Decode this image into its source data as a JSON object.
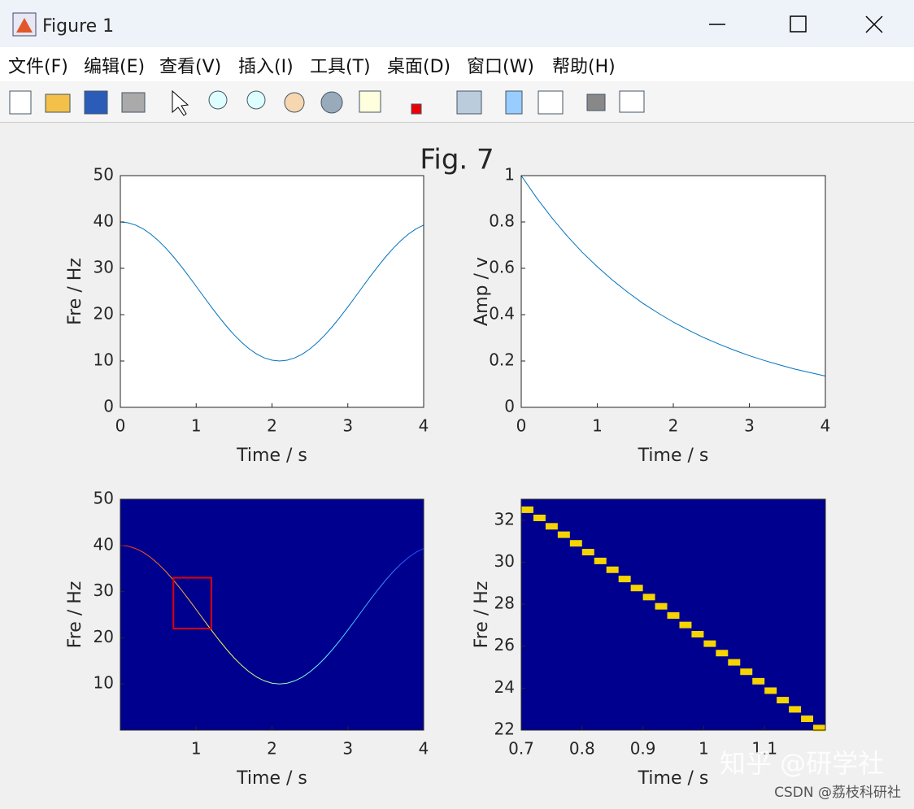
{
  "window": {
    "title": "Figure 1",
    "menu": [
      "文件(F)",
      "编辑(E)",
      "查看(V)",
      "插入(I)",
      "工具(T)",
      "桌面(D)",
      "窗口(W)",
      "帮助(H)"
    ]
  },
  "figure_title": "Fig. 7",
  "watermarks": [
    "知乎 @研学社",
    "CSDN @荔枝科研社"
  ],
  "chart_data": [
    {
      "type": "line",
      "xlabel": "Time / s",
      "ylabel": "Fre / Hz",
      "xlim": [
        0,
        4
      ],
      "ylim": [
        0,
        50
      ],
      "xticks": [
        0,
        1,
        2,
        3,
        4
      ],
      "yticks": [
        0,
        10,
        20,
        30,
        40,
        50
      ],
      "x": [
        0,
        0.1,
        0.2,
        0.3,
        0.4,
        0.5,
        0.6,
        0.7,
        0.8,
        0.9,
        1,
        1.1,
        1.2,
        1.3,
        1.4,
        1.5,
        1.6,
        1.7,
        1.8,
        1.9,
        2,
        2.1,
        2.2,
        2.3,
        2.4,
        2.5,
        2.6,
        2.7,
        2.8,
        2.9,
        3,
        3.1,
        3.2,
        3.3,
        3.4,
        3.5,
        3.6,
        3.7,
        3.8,
        3.9,
        4
      ],
      "series": [
        {
          "color": "#0072bd",
          "values": [
            40,
            39.83,
            39.33,
            38.52,
            37.39,
            35.99,
            34.35,
            32.5,
            30.48,
            28.34,
            26.12,
            23.88,
            21.66,
            19.52,
            17.5,
            15.65,
            14.01,
            12.61,
            11.48,
            10.67,
            10.17,
            10,
            10.17,
            10.67,
            11.48,
            12.61,
            14.01,
            15.65,
            17.5,
            19.52,
            21.66,
            23.88,
            26.12,
            28.34,
            30.48,
            32.5,
            34.35,
            35.99,
            37.39,
            38.52,
            39.33
          ]
        }
      ]
    },
    {
      "type": "line",
      "xlabel": "Time / s",
      "ylabel": "Amp / v",
      "xlim": [
        0,
        4
      ],
      "ylim": [
        0,
        1
      ],
      "xticks": [
        0,
        1,
        2,
        3,
        4
      ],
      "yticks": [
        0,
        0.2,
        0.4,
        0.6,
        0.8,
        1
      ],
      "x": [
        0,
        0.2,
        0.4,
        0.6,
        0.8,
        1,
        1.2,
        1.4,
        1.6,
        1.8,
        2,
        2.2,
        2.4,
        2.6,
        2.8,
        3,
        3.2,
        3.4,
        3.6,
        3.8,
        4
      ],
      "series": [
        {
          "color": "#0072bd",
          "values": [
            1,
            0.905,
            0.819,
            0.741,
            0.67,
            0.607,
            0.549,
            0.497,
            0.449,
            0.407,
            0.368,
            0.333,
            0.301,
            0.273,
            0.247,
            0.223,
            0.202,
            0.183,
            0.165,
            0.15,
            0.135
          ]
        }
      ]
    },
    {
      "type": "line",
      "xlabel": "Time / s",
      "ylabel": "Fre / Hz",
      "xlim": [
        0,
        4
      ],
      "ylim": [
        0,
        50
      ],
      "xticks": [
        1,
        2,
        3,
        4
      ],
      "yticks": [
        10,
        20,
        30,
        40,
        50
      ],
      "background": "#00008f",
      "annotation_box": {
        "x": [
          0.7,
          1.2
        ],
        "y": [
          22,
          33
        ],
        "color": "#e00000"
      },
      "x": [
        0,
        0.1,
        0.2,
        0.3,
        0.4,
        0.5,
        0.6,
        0.7,
        0.8,
        0.9,
        1,
        1.1,
        1.2,
        1.3,
        1.4,
        1.5,
        1.6,
        1.7,
        1.8,
        1.9,
        2,
        2.1,
        2.2,
        2.3,
        2.4,
        2.5,
        2.6,
        2.7,
        2.8,
        2.9,
        3,
        3.1,
        3.2,
        3.3,
        3.4,
        3.5,
        3.6,
        3.7,
        3.8,
        3.9,
        4
      ],
      "series": [
        {
          "colors": [
            "#ff2000",
            "#ffff40",
            "#60ffff",
            "#2040ff"
          ],
          "values": [
            40,
            39.83,
            39.33,
            38.52,
            37.39,
            35.99,
            34.35,
            32.5,
            30.48,
            28.34,
            26.12,
            23.88,
            21.66,
            19.52,
            17.5,
            15.65,
            14.01,
            12.61,
            11.48,
            10.67,
            10.17,
            10,
            10.17,
            10.67,
            11.48,
            12.61,
            14.01,
            15.65,
            17.5,
            19.52,
            21.66,
            23.88,
            26.12,
            28.34,
            30.48,
            32.5,
            34.35,
            35.99,
            37.39,
            38.52,
            39.33
          ]
        }
      ]
    },
    {
      "type": "heatmap",
      "xlabel": "Time / s",
      "ylabel": "Fre / Hz",
      "xlim": [
        0.7,
        1.2
      ],
      "ylim": [
        22,
        33
      ],
      "xticks": [
        0.7,
        0.8,
        0.9,
        1,
        1.1
      ],
      "yticks": [
        22,
        24,
        26,
        28,
        30,
        32
      ],
      "background": "#00008f",
      "x": [
        0.7,
        0.72,
        0.74,
        0.76,
        0.78,
        0.8,
        0.82,
        0.84,
        0.86,
        0.88,
        0.9,
        0.92,
        0.94,
        0.96,
        0.98,
        1,
        1.02,
        1.04,
        1.06,
        1.08,
        1.1,
        1.12,
        1.14,
        1.16,
        1.18
      ],
      "series": [
        {
          "color": "#f5d400",
          "values": [
            32.5,
            32.11,
            31.71,
            31.31,
            30.9,
            30.48,
            30.06,
            29.64,
            29.2,
            28.77,
            28.34,
            27.9,
            27.46,
            27.01,
            26.57,
            26.12,
            25.67,
            25.23,
            24.78,
            24.33,
            23.88,
            23.43,
            22.99,
            22.54,
            22.1
          ]
        }
      ]
    }
  ]
}
